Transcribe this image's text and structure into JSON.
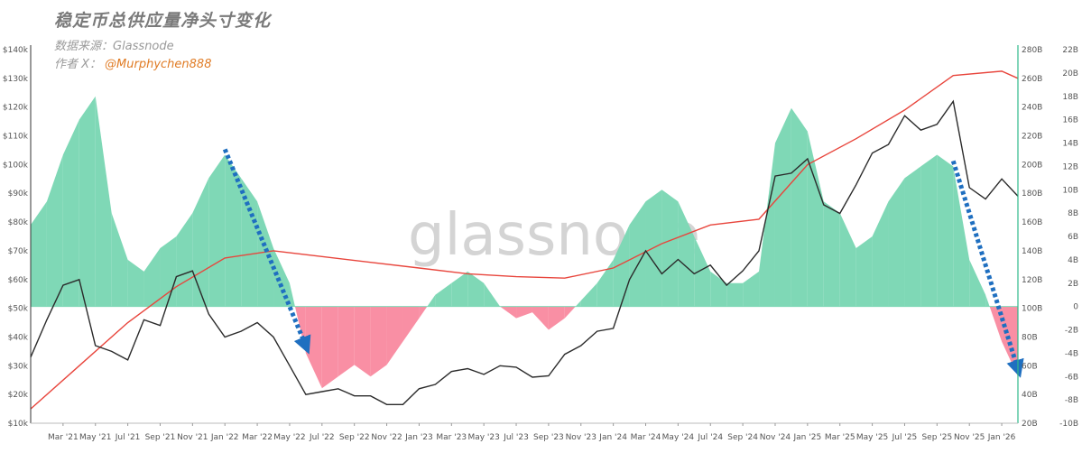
{
  "header": {
    "title": "稳定币总供应量净头寸变化",
    "source": "数据来源：Glassnode",
    "author_label": "作者 X：",
    "author_handle": "@Murphychen888"
  },
  "watermark": "glassnode",
  "colors": {
    "positive_area": "#7fd8b6",
    "negative_area": "#f98fa4",
    "price_line": "#2b2b2b",
    "supply_line": "#e8453c",
    "arrow": "#1f6fc0"
  },
  "chart_data": {
    "type": "area",
    "x_ticks": [
      "Mar '21",
      "May '21",
      "Jul '21",
      "Sep '21",
      "Nov '21",
      "Jan '22",
      "Mar '22",
      "May '22",
      "Jul '22",
      "Sep '22",
      "Nov '22",
      "Jan '23",
      "Mar '23",
      "May '23",
      "Jul '23",
      "Sep '23",
      "Nov '23",
      "Jan '24",
      "Mar '24",
      "May '24",
      "Jul '24",
      "Sep '24",
      "Nov '24",
      "Jan '25",
      "Mar '25",
      "May '25",
      "Jul '25",
      "Sep '25",
      "Nov '25",
      "Jan '26"
    ],
    "x_range": [
      "2021-01",
      "2026-02"
    ],
    "axes": {
      "left": {
        "ticks": [
          "$10k",
          "$20k",
          "$30k",
          "$40k",
          "$50k",
          "$60k",
          "$70k",
          "$80k",
          "$90k",
          "$100k",
          "$110k",
          "$120k",
          "$130k",
          "$140k"
        ],
        "range": [
          10000,
          140000
        ]
      },
      "right_supply": {
        "ticks": [
          "20B",
          "40B",
          "60B",
          "80B",
          "100B",
          "120B",
          "140B",
          "160B",
          "180B",
          "200B",
          "220B",
          "240B",
          "260B",
          "280B"
        ],
        "range": [
          20,
          280
        ]
      },
      "right_change": {
        "ticks": [
          "-10B",
          "-8B",
          "-6B",
          "-4B",
          "-2B",
          "0",
          "2B",
          "4B",
          "6B",
          "8B",
          "10B",
          "12B",
          "14B",
          "16B",
          "18B",
          "20B",
          "22B"
        ],
        "range": [
          -10,
          22
        ]
      }
    },
    "series": [
      {
        "kind": "net_position_change",
        "axis": "right_change",
        "x": [
          "2021-01",
          "2021-02",
          "2021-03",
          "2021-04",
          "2021-05",
          "2021-06",
          "2021-07",
          "2021-08",
          "2021-09",
          "2021-10",
          "2021-11",
          "2021-12",
          "2022-01",
          "2022-02",
          "2022-03",
          "2022-04",
          "2022-05",
          "2022-06",
          "2022-07",
          "2022-08",
          "2022-09",
          "2022-10",
          "2022-11",
          "2022-12",
          "2023-01",
          "2023-02",
          "2023-03",
          "2023-04",
          "2023-05",
          "2023-06",
          "2023-07",
          "2023-08",
          "2023-09",
          "2023-10",
          "2023-11",
          "2023-12",
          "2024-01",
          "2024-02",
          "2024-03",
          "2024-04",
          "2024-05",
          "2024-06",
          "2024-07",
          "2024-08",
          "2024-09",
          "2024-10",
          "2024-11",
          "2024-12",
          "2025-01",
          "2025-02",
          "2025-03",
          "2025-04",
          "2025-05",
          "2025-06",
          "2025-07",
          "2025-08",
          "2025-09",
          "2025-10",
          "2025-11",
          "2025-12",
          "2026-01",
          "2026-02"
        ],
        "values": [
          7,
          9,
          13,
          16,
          18,
          8,
          4,
          3,
          5,
          6,
          8,
          11,
          13,
          11,
          9,
          5,
          2,
          -4,
          -7,
          -6,
          -5,
          -6,
          -5,
          -3,
          -1,
          1,
          2,
          3,
          2,
          0,
          -1,
          -0.5,
          -2,
          -1,
          0.5,
          2,
          4,
          7,
          9,
          10,
          9,
          6,
          3,
          2,
          2,
          3,
          14,
          17,
          15,
          9,
          8,
          5,
          6,
          9,
          11,
          12,
          13,
          12,
          4,
          1,
          -3,
          -6
        ]
      },
      {
        "kind": "btc_price",
        "axis": "left",
        "x": [
          "2021-01",
          "2021-02",
          "2021-03",
          "2021-04",
          "2021-05",
          "2021-06",
          "2021-07",
          "2021-08",
          "2021-09",
          "2021-10",
          "2021-11",
          "2021-12",
          "2022-01",
          "2022-02",
          "2022-03",
          "2022-04",
          "2022-05",
          "2022-06",
          "2022-07",
          "2022-08",
          "2022-09",
          "2022-10",
          "2022-11",
          "2022-12",
          "2023-01",
          "2023-02",
          "2023-03",
          "2023-04",
          "2023-05",
          "2023-06",
          "2023-07",
          "2023-08",
          "2023-09",
          "2023-10",
          "2023-11",
          "2023-12",
          "2024-01",
          "2024-02",
          "2024-03",
          "2024-04",
          "2024-05",
          "2024-06",
          "2024-07",
          "2024-08",
          "2024-09",
          "2024-10",
          "2024-11",
          "2024-12",
          "2025-01",
          "2025-02",
          "2025-03",
          "2025-04",
          "2025-05",
          "2025-06",
          "2025-07",
          "2025-08",
          "2025-09",
          "2025-10",
          "2025-11",
          "2025-12",
          "2026-01",
          "2026-02"
        ],
        "values": [
          33000,
          46000,
          58000,
          60000,
          37000,
          35000,
          32000,
          46000,
          44000,
          61000,
          63000,
          48000,
          40000,
          42000,
          45000,
          40000,
          30000,
          20000,
          21000,
          22000,
          19500,
          19500,
          16500,
          16500,
          22000,
          23500,
          28000,
          29000,
          27000,
          30000,
          29500,
          26000,
          26500,
          34000,
          37000,
          42000,
          43000,
          60000,
          70000,
          62000,
          67000,
          62000,
          65000,
          58000,
          63000,
          70000,
          96000,
          97000,
          102000,
          86000,
          83000,
          93000,
          104000,
          107000,
          117000,
          112000,
          114000,
          122000,
          92000,
          88000,
          95000,
          89000
        ]
      },
      {
        "kind": "stablecoin_supply",
        "axis": "right_supply",
        "x": [
          "2021-01",
          "2021-04",
          "2021-07",
          "2021-10",
          "2022-01",
          "2022-04",
          "2022-07",
          "2022-10",
          "2023-01",
          "2023-04",
          "2023-07",
          "2023-10",
          "2024-01",
          "2024-04",
          "2024-07",
          "2024-10",
          "2025-01",
          "2025-04",
          "2025-07",
          "2025-10",
          "2026-01",
          "2026-02"
        ],
        "values": [
          30,
          60,
          90,
          115,
          135,
          140,
          136,
          132,
          128,
          124,
          122,
          121,
          128,
          145,
          158,
          162,
          200,
          218,
          238,
          262,
          265,
          260
        ]
      }
    ],
    "annotations": [
      {
        "type": "arrow",
        "from": "2022-01",
        "to": "2022-06"
      },
      {
        "type": "arrow",
        "from": "2025-10",
        "to": "2026-02"
      }
    ]
  }
}
